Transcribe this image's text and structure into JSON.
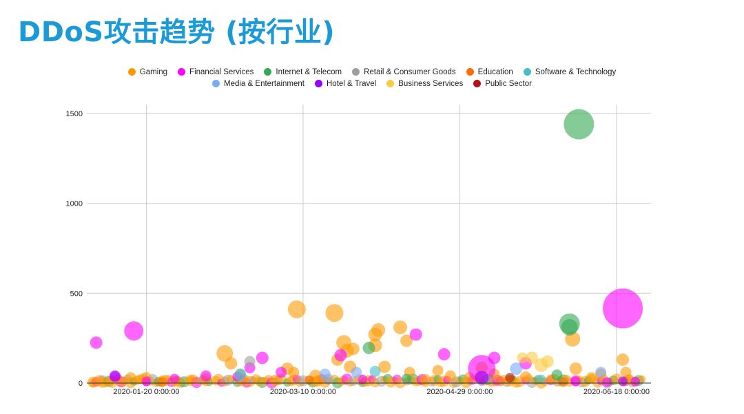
{
  "page": {
    "title": "DDoS攻击趋势 (按行业)"
  },
  "chart_data": {
    "type": "scatter",
    "title": "",
    "xlabel": "",
    "ylabel": "",
    "ylim": [
      0,
      1500
    ],
    "y_ticks": [
      "0",
      "500",
      "1000",
      "1500"
    ],
    "x_ticks": [
      "2020-01-20 0:00:00",
      "2020-03-10 0:00:00",
      "2020-04-29 0:00:00",
      "2020-06-18 0:00:00"
    ],
    "x_range": [
      "2020-01-01",
      "2020-06-29"
    ],
    "grid": true,
    "legend_position": "top",
    "series": [
      {
        "name": "Gaming",
        "color": "#ff9900",
        "points": [
          [
            "2020-01-03",
            5,
            8
          ],
          [
            "2020-01-06",
            5,
            8
          ],
          [
            "2020-01-09",
            8,
            9
          ],
          [
            "2020-01-12",
            5,
            7
          ],
          [
            "2020-01-15",
            30,
            8
          ],
          [
            "2020-01-18",
            20,
            7
          ],
          [
            "2020-01-20",
            35,
            7
          ],
          [
            "2020-01-25",
            10,
            8
          ],
          [
            "2020-01-30",
            8,
            7
          ],
          [
            "2020-02-03",
            15,
            8
          ],
          [
            "2020-02-08",
            10,
            7
          ],
          [
            "2020-02-14",
            165,
            12
          ],
          [
            "2020-02-16",
            110,
            9
          ],
          [
            "2020-02-20",
            20,
            8
          ],
          [
            "2020-02-25",
            10,
            7
          ],
          [
            "2020-03-01",
            15,
            8
          ],
          [
            "2020-03-05",
            80,
            9
          ],
          [
            "2020-03-07",
            60,
            8
          ],
          [
            "2020-03-08",
            410,
            13
          ],
          [
            "2020-03-14",
            40,
            9
          ],
          [
            "2020-03-15",
            15,
            8
          ],
          [
            "2020-03-20",
            390,
            13
          ],
          [
            "2020-03-21",
            130,
            9
          ],
          [
            "2020-03-23",
            225,
            11
          ],
          [
            "2020-03-24",
            180,
            10
          ],
          [
            "2020-03-25",
            90,
            9
          ],
          [
            "2020-03-26",
            190,
            9
          ],
          [
            "2020-04-02",
            210,
            10
          ],
          [
            "2020-04-02",
            270,
            10
          ],
          [
            "2020-04-03",
            295,
            10
          ],
          [
            "2020-04-05",
            90,
            9
          ],
          [
            "2020-04-10",
            310,
            10
          ],
          [
            "2020-04-12",
            235,
            9
          ],
          [
            "2020-04-13",
            60,
            8
          ],
          [
            "2020-04-18",
            20,
            8
          ],
          [
            "2020-04-22",
            70,
            8
          ],
          [
            "2020-04-26",
            40,
            8
          ],
          [
            "2020-05-02",
            30,
            8
          ],
          [
            "2020-05-06",
            85,
            9
          ],
          [
            "2020-05-10",
            50,
            8
          ],
          [
            "2020-05-15",
            20,
            7
          ],
          [
            "2020-05-20",
            35,
            8
          ],
          [
            "2020-05-28",
            20,
            7
          ],
          [
            "2020-06-04",
            245,
            11
          ],
          [
            "2020-06-05",
            80,
            9
          ],
          [
            "2020-06-10",
            30,
            8
          ],
          [
            "2020-06-13",
            50,
            8
          ],
          [
            "2020-06-20",
            130,
            9
          ],
          [
            "2020-06-21",
            60,
            8
          ],
          [
            "2020-06-22",
            20,
            7
          ]
        ]
      },
      {
        "name": "Financial Services",
        "color": "#ff00ff",
        "points": [
          [
            "2020-01-04",
            225,
            9
          ],
          [
            "2020-01-10",
            35,
            8
          ],
          [
            "2020-01-16",
            290,
            14
          ],
          [
            "2020-01-20",
            10,
            7
          ],
          [
            "2020-01-29",
            25,
            7
          ],
          [
            "2020-02-08",
            40,
            8
          ],
          [
            "2020-02-18",
            35,
            7
          ],
          [
            "2020-02-22",
            85,
            8
          ],
          [
            "2020-02-26",
            140,
            9
          ],
          [
            "2020-03-03",
            60,
            8
          ],
          [
            "2020-03-22",
            155,
            9
          ],
          [
            "2020-03-29",
            20,
            7
          ],
          [
            "2020-04-15",
            270,
            9
          ],
          [
            "2020-04-24",
            160,
            9
          ],
          [
            "2020-05-06",
            80,
            20
          ],
          [
            "2020-05-10",
            140,
            9
          ],
          [
            "2020-05-20",
            110,
            9
          ],
          [
            "2020-06-05",
            10,
            7
          ],
          [
            "2020-06-15",
            5,
            7
          ],
          [
            "2020-06-20",
            415,
            29
          ],
          [
            "2020-06-24",
            8,
            7
          ]
        ]
      },
      {
        "name": "Internet & Telecom",
        "color": "#34a853",
        "points": [
          [
            "2020-02-19",
            50,
            8
          ],
          [
            "2020-03-31",
            195,
            9
          ],
          [
            "2020-04-12",
            25,
            7
          ],
          [
            "2020-05-30",
            45,
            8
          ],
          [
            "2020-06-03",
            330,
            15
          ],
          [
            "2020-06-03",
            310,
            12
          ],
          [
            "2020-06-06",
            1440,
            22
          ]
        ]
      },
      {
        "name": "Retail & Consumer Goods",
        "color": "#9e9e9e",
        "points": [
          [
            "2020-02-22",
            120,
            8
          ],
          [
            "2020-03-18",
            25,
            7
          ],
          [
            "2020-05-08",
            15,
            7
          ]
        ]
      },
      {
        "name": "Education",
        "color": "#ff6d01",
        "points": [
          [
            "2020-01-25",
            5,
            7
          ],
          [
            "2020-03-12",
            15,
            7
          ],
          [
            "2020-05-12",
            10,
            7
          ],
          [
            "2020-06-01",
            5,
            7
          ]
        ]
      },
      {
        "name": "Software & Technology",
        "color": "#46bdc6",
        "points": [
          [
            "2020-04-02",
            65,
            8
          ],
          [
            "2020-05-25",
            20,
            7
          ]
        ]
      },
      {
        "name": "Media & Entertainment",
        "color": "#7baaf7",
        "points": [
          [
            "2020-03-17",
            50,
            8
          ],
          [
            "2020-03-27",
            60,
            8
          ],
          [
            "2020-05-17",
            80,
            9
          ],
          [
            "2020-06-13",
            60,
            8
          ],
          [
            "2020-02-19",
            40,
            8
          ]
        ]
      },
      {
        "name": "Hotel & Travel",
        "color": "#9900ff",
        "points": [
          [
            "2020-01-10",
            40,
            8
          ],
          [
            "2020-05-06",
            30,
            10
          ],
          [
            "2020-06-20",
            10,
            7
          ]
        ]
      },
      {
        "name": "Business Services",
        "color": "#fbcb43",
        "points": [
          [
            "2020-05-22",
            140,
            9
          ],
          [
            "2020-05-25",
            100,
            10
          ],
          [
            "2020-05-27",
            120,
            9
          ],
          [
            "2020-05-19",
            140,
            8
          ]
        ]
      },
      {
        "name": "Public Sector",
        "color": "#b31412",
        "points": [
          [
            "2020-05-15",
            30,
            7
          ]
        ]
      }
    ]
  }
}
